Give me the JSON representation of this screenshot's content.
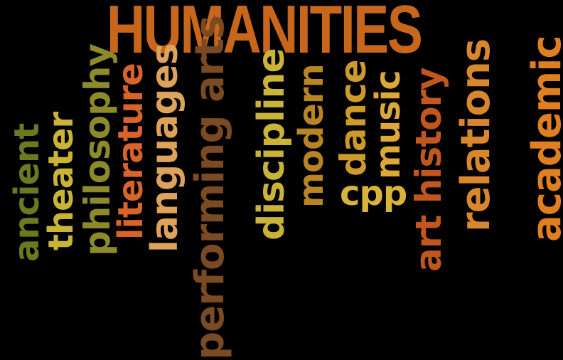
{
  "words": [
    {
      "text": "HUMANITIES",
      "color": "#c8671c"
    },
    {
      "text": "ancient",
      "color": "#6b7a1e"
    },
    {
      "text": "theater",
      "color": "#c9b437"
    },
    {
      "text": "philosophy",
      "color": "#8c8a2a"
    },
    {
      "text": "literature",
      "color": "#d8642a"
    },
    {
      "text": "languages",
      "color": "#dea35a"
    },
    {
      "text": "performing arts",
      "color": "#7a4a22"
    },
    {
      "text": "discipline",
      "color": "#c9b437"
    },
    {
      "text": "modern",
      "color": "#b88424"
    },
    {
      "text": "dance",
      "color": "#cf9a2c"
    },
    {
      "text": "cpp",
      "color": "#d9b43a"
    },
    {
      "text": "music",
      "color": "#dca83a"
    },
    {
      "text": "art history",
      "color": "#c1571e"
    },
    {
      "text": "relations",
      "color": "#d8872d"
    },
    {
      "text": "academic",
      "color": "#e07e22"
    }
  ]
}
